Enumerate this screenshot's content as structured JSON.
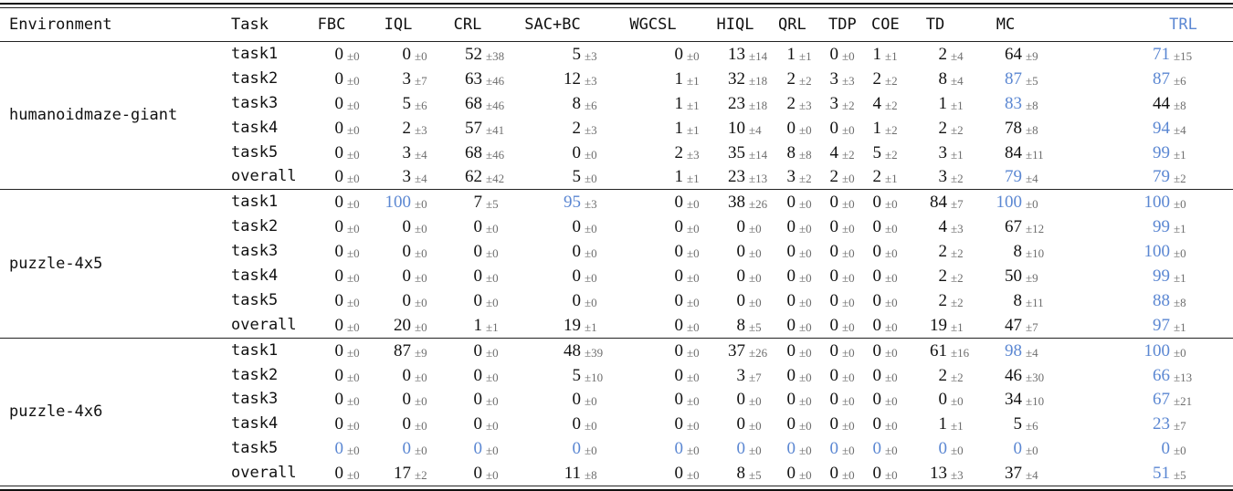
{
  "accent_blue": "#5b87d2",
  "table": {
    "headers": [
      "Environment",
      "Task",
      "FBC",
      "IQL",
      "CRL",
      "SAC+BC",
      "WGCSL",
      "HIQL",
      "QRL",
      "TDP",
      "COE",
      "TD",
      "MC",
      "TRL"
    ],
    "blue_header": "TRL",
    "plus_minus_symbol": "±",
    "groups": [
      {
        "environment": "humanoidmaze-giant",
        "rows": [
          {
            "task": "task1",
            "cells": [
              [
                0,
                0
              ],
              [
                0,
                0
              ],
              [
                52,
                38
              ],
              [
                5,
                3
              ],
              [
                0,
                0
              ],
              [
                13,
                14
              ],
              [
                1,
                1
              ],
              [
                0,
                0
              ],
              [
                1,
                1
              ],
              [
                2,
                4
              ],
              [
                64,
                9
              ],
              [
                71,
                15,
                1
              ]
            ]
          },
          {
            "task": "task2",
            "cells": [
              [
                0,
                0
              ],
              [
                3,
                7
              ],
              [
                63,
                46
              ],
              [
                12,
                3
              ],
              [
                1,
                1
              ],
              [
                32,
                18
              ],
              [
                2,
                2
              ],
              [
                3,
                3
              ],
              [
                2,
                2
              ],
              [
                8,
                4
              ],
              [
                87,
                5,
                1
              ],
              [
                87,
                6,
                1
              ]
            ]
          },
          {
            "task": "task3",
            "cells": [
              [
                0,
                0
              ],
              [
                5,
                6
              ],
              [
                68,
                46
              ],
              [
                8,
                6
              ],
              [
                1,
                1
              ],
              [
                23,
                18
              ],
              [
                2,
                3
              ],
              [
                3,
                2
              ],
              [
                4,
                2
              ],
              [
                1,
                1
              ],
              [
                83,
                8,
                1
              ],
              [
                44,
                8
              ]
            ]
          },
          {
            "task": "task4",
            "cells": [
              [
                0,
                0
              ],
              [
                2,
                3
              ],
              [
                57,
                41
              ],
              [
                2,
                3
              ],
              [
                1,
                1
              ],
              [
                10,
                4
              ],
              [
                0,
                0
              ],
              [
                0,
                0
              ],
              [
                1,
                2
              ],
              [
                2,
                2
              ],
              [
                78,
                8
              ],
              [
                94,
                4,
                1
              ]
            ]
          },
          {
            "task": "task5",
            "cells": [
              [
                0,
                0
              ],
              [
                3,
                4
              ],
              [
                68,
                46
              ],
              [
                0,
                0
              ],
              [
                2,
                3
              ],
              [
                35,
                14
              ],
              [
                8,
                8
              ],
              [
                4,
                2
              ],
              [
                5,
                2
              ],
              [
                3,
                1
              ],
              [
                84,
                11
              ],
              [
                99,
                1,
                1
              ]
            ]
          },
          {
            "task": "overall",
            "cells": [
              [
                0,
                0
              ],
              [
                3,
                4
              ],
              [
                62,
                42
              ],
              [
                5,
                0
              ],
              [
                1,
                1
              ],
              [
                23,
                13
              ],
              [
                3,
                2
              ],
              [
                2,
                0
              ],
              [
                2,
                1
              ],
              [
                3,
                2
              ],
              [
                79,
                4,
                1
              ],
              [
                79,
                2,
                1
              ]
            ]
          }
        ]
      },
      {
        "environment": "puzzle-4x5",
        "rows": [
          {
            "task": "task1",
            "cells": [
              [
                0,
                0
              ],
              [
                100,
                0,
                1
              ],
              [
                7,
                5
              ],
              [
                95,
                3,
                1
              ],
              [
                0,
                0
              ],
              [
                38,
                26
              ],
              [
                0,
                0
              ],
              [
                0,
                0
              ],
              [
                0,
                0
              ],
              [
                84,
                7
              ],
              [
                100,
                0,
                1
              ],
              [
                100,
                0,
                1
              ]
            ]
          },
          {
            "task": "task2",
            "cells": [
              [
                0,
                0
              ],
              [
                0,
                0
              ],
              [
                0,
                0
              ],
              [
                0,
                0
              ],
              [
                0,
                0
              ],
              [
                0,
                0
              ],
              [
                0,
                0
              ],
              [
                0,
                0
              ],
              [
                0,
                0
              ],
              [
                4,
                3
              ],
              [
                67,
                12
              ],
              [
                99,
                1,
                1
              ]
            ]
          },
          {
            "task": "task3",
            "cells": [
              [
                0,
                0
              ],
              [
                0,
                0
              ],
              [
                0,
                0
              ],
              [
                0,
                0
              ],
              [
                0,
                0
              ],
              [
                0,
                0
              ],
              [
                0,
                0
              ],
              [
                0,
                0
              ],
              [
                0,
                0
              ],
              [
                2,
                2
              ],
              [
                8,
                10
              ],
              [
                100,
                0,
                1
              ]
            ]
          },
          {
            "task": "task4",
            "cells": [
              [
                0,
                0
              ],
              [
                0,
                0
              ],
              [
                0,
                0
              ],
              [
                0,
                0
              ],
              [
                0,
                0
              ],
              [
                0,
                0
              ],
              [
                0,
                0
              ],
              [
                0,
                0
              ],
              [
                0,
                0
              ],
              [
                2,
                2
              ],
              [
                50,
                9
              ],
              [
                99,
                1,
                1
              ]
            ]
          },
          {
            "task": "task5",
            "cells": [
              [
                0,
                0
              ],
              [
                0,
                0
              ],
              [
                0,
                0
              ],
              [
                0,
                0
              ],
              [
                0,
                0
              ],
              [
                0,
                0
              ],
              [
                0,
                0
              ],
              [
                0,
                0
              ],
              [
                0,
                0
              ],
              [
                2,
                2
              ],
              [
                8,
                11
              ],
              [
                88,
                8,
                1
              ]
            ]
          },
          {
            "task": "overall",
            "cells": [
              [
                0,
                0
              ],
              [
                20,
                0
              ],
              [
                1,
                1
              ],
              [
                19,
                1
              ],
              [
                0,
                0
              ],
              [
                8,
                5
              ],
              [
                0,
                0
              ],
              [
                0,
                0
              ],
              [
                0,
                0
              ],
              [
                19,
                1
              ],
              [
                47,
                7
              ],
              [
                97,
                1,
                1
              ]
            ]
          }
        ]
      },
      {
        "environment": "puzzle-4x6",
        "rows": [
          {
            "task": "task1",
            "cells": [
              [
                0,
                0
              ],
              [
                87,
                9
              ],
              [
                0,
                0
              ],
              [
                48,
                39
              ],
              [
                0,
                0
              ],
              [
                37,
                26
              ],
              [
                0,
                0
              ],
              [
                0,
                0
              ],
              [
                0,
                0
              ],
              [
                61,
                16
              ],
              [
                98,
                4,
                1
              ],
              [
                100,
                0,
                1
              ]
            ]
          },
          {
            "task": "task2",
            "cells": [
              [
                0,
                0
              ],
              [
                0,
                0
              ],
              [
                0,
                0
              ],
              [
                5,
                10
              ],
              [
                0,
                0
              ],
              [
                3,
                7
              ],
              [
                0,
                0
              ],
              [
                0,
                0
              ],
              [
                0,
                0
              ],
              [
                2,
                2
              ],
              [
                46,
                30
              ],
              [
                66,
                13,
                1
              ]
            ]
          },
          {
            "task": "task3",
            "cells": [
              [
                0,
                0
              ],
              [
                0,
                0
              ],
              [
                0,
                0
              ],
              [
                0,
                0
              ],
              [
                0,
                0
              ],
              [
                0,
                0
              ],
              [
                0,
                0
              ],
              [
                0,
                0
              ],
              [
                0,
                0
              ],
              [
                0,
                0
              ],
              [
                34,
                10
              ],
              [
                67,
                21,
                1
              ]
            ]
          },
          {
            "task": "task4",
            "cells": [
              [
                0,
                0
              ],
              [
                0,
                0
              ],
              [
                0,
                0
              ],
              [
                0,
                0
              ],
              [
                0,
                0
              ],
              [
                0,
                0
              ],
              [
                0,
                0
              ],
              [
                0,
                0
              ],
              [
                0,
                0
              ],
              [
                1,
                1
              ],
              [
                5,
                6
              ],
              [
                23,
                7,
                1
              ]
            ]
          },
          {
            "task": "task5",
            "cells": [
              [
                0,
                0,
                1
              ],
              [
                0,
                0,
                1
              ],
              [
                0,
                0,
                1
              ],
              [
                0,
                0,
                1
              ],
              [
                0,
                0,
                1
              ],
              [
                0,
                0,
                1
              ],
              [
                0,
                0,
                1
              ],
              [
                0,
                0,
                1
              ],
              [
                0,
                0,
                1
              ],
              [
                0,
                0,
                1
              ],
              [
                0,
                0,
                1
              ],
              [
                0,
                0,
                1
              ]
            ]
          },
          {
            "task": "overall",
            "cells": [
              [
                0,
                0
              ],
              [
                17,
                2
              ],
              [
                0,
                0
              ],
              [
                11,
                8
              ],
              [
                0,
                0
              ],
              [
                8,
                5
              ],
              [
                0,
                0
              ],
              [
                0,
                0
              ],
              [
                0,
                0
              ],
              [
                13,
                3
              ],
              [
                37,
                4
              ],
              [
                51,
                5,
                1
              ]
            ]
          }
        ]
      }
    ]
  }
}
